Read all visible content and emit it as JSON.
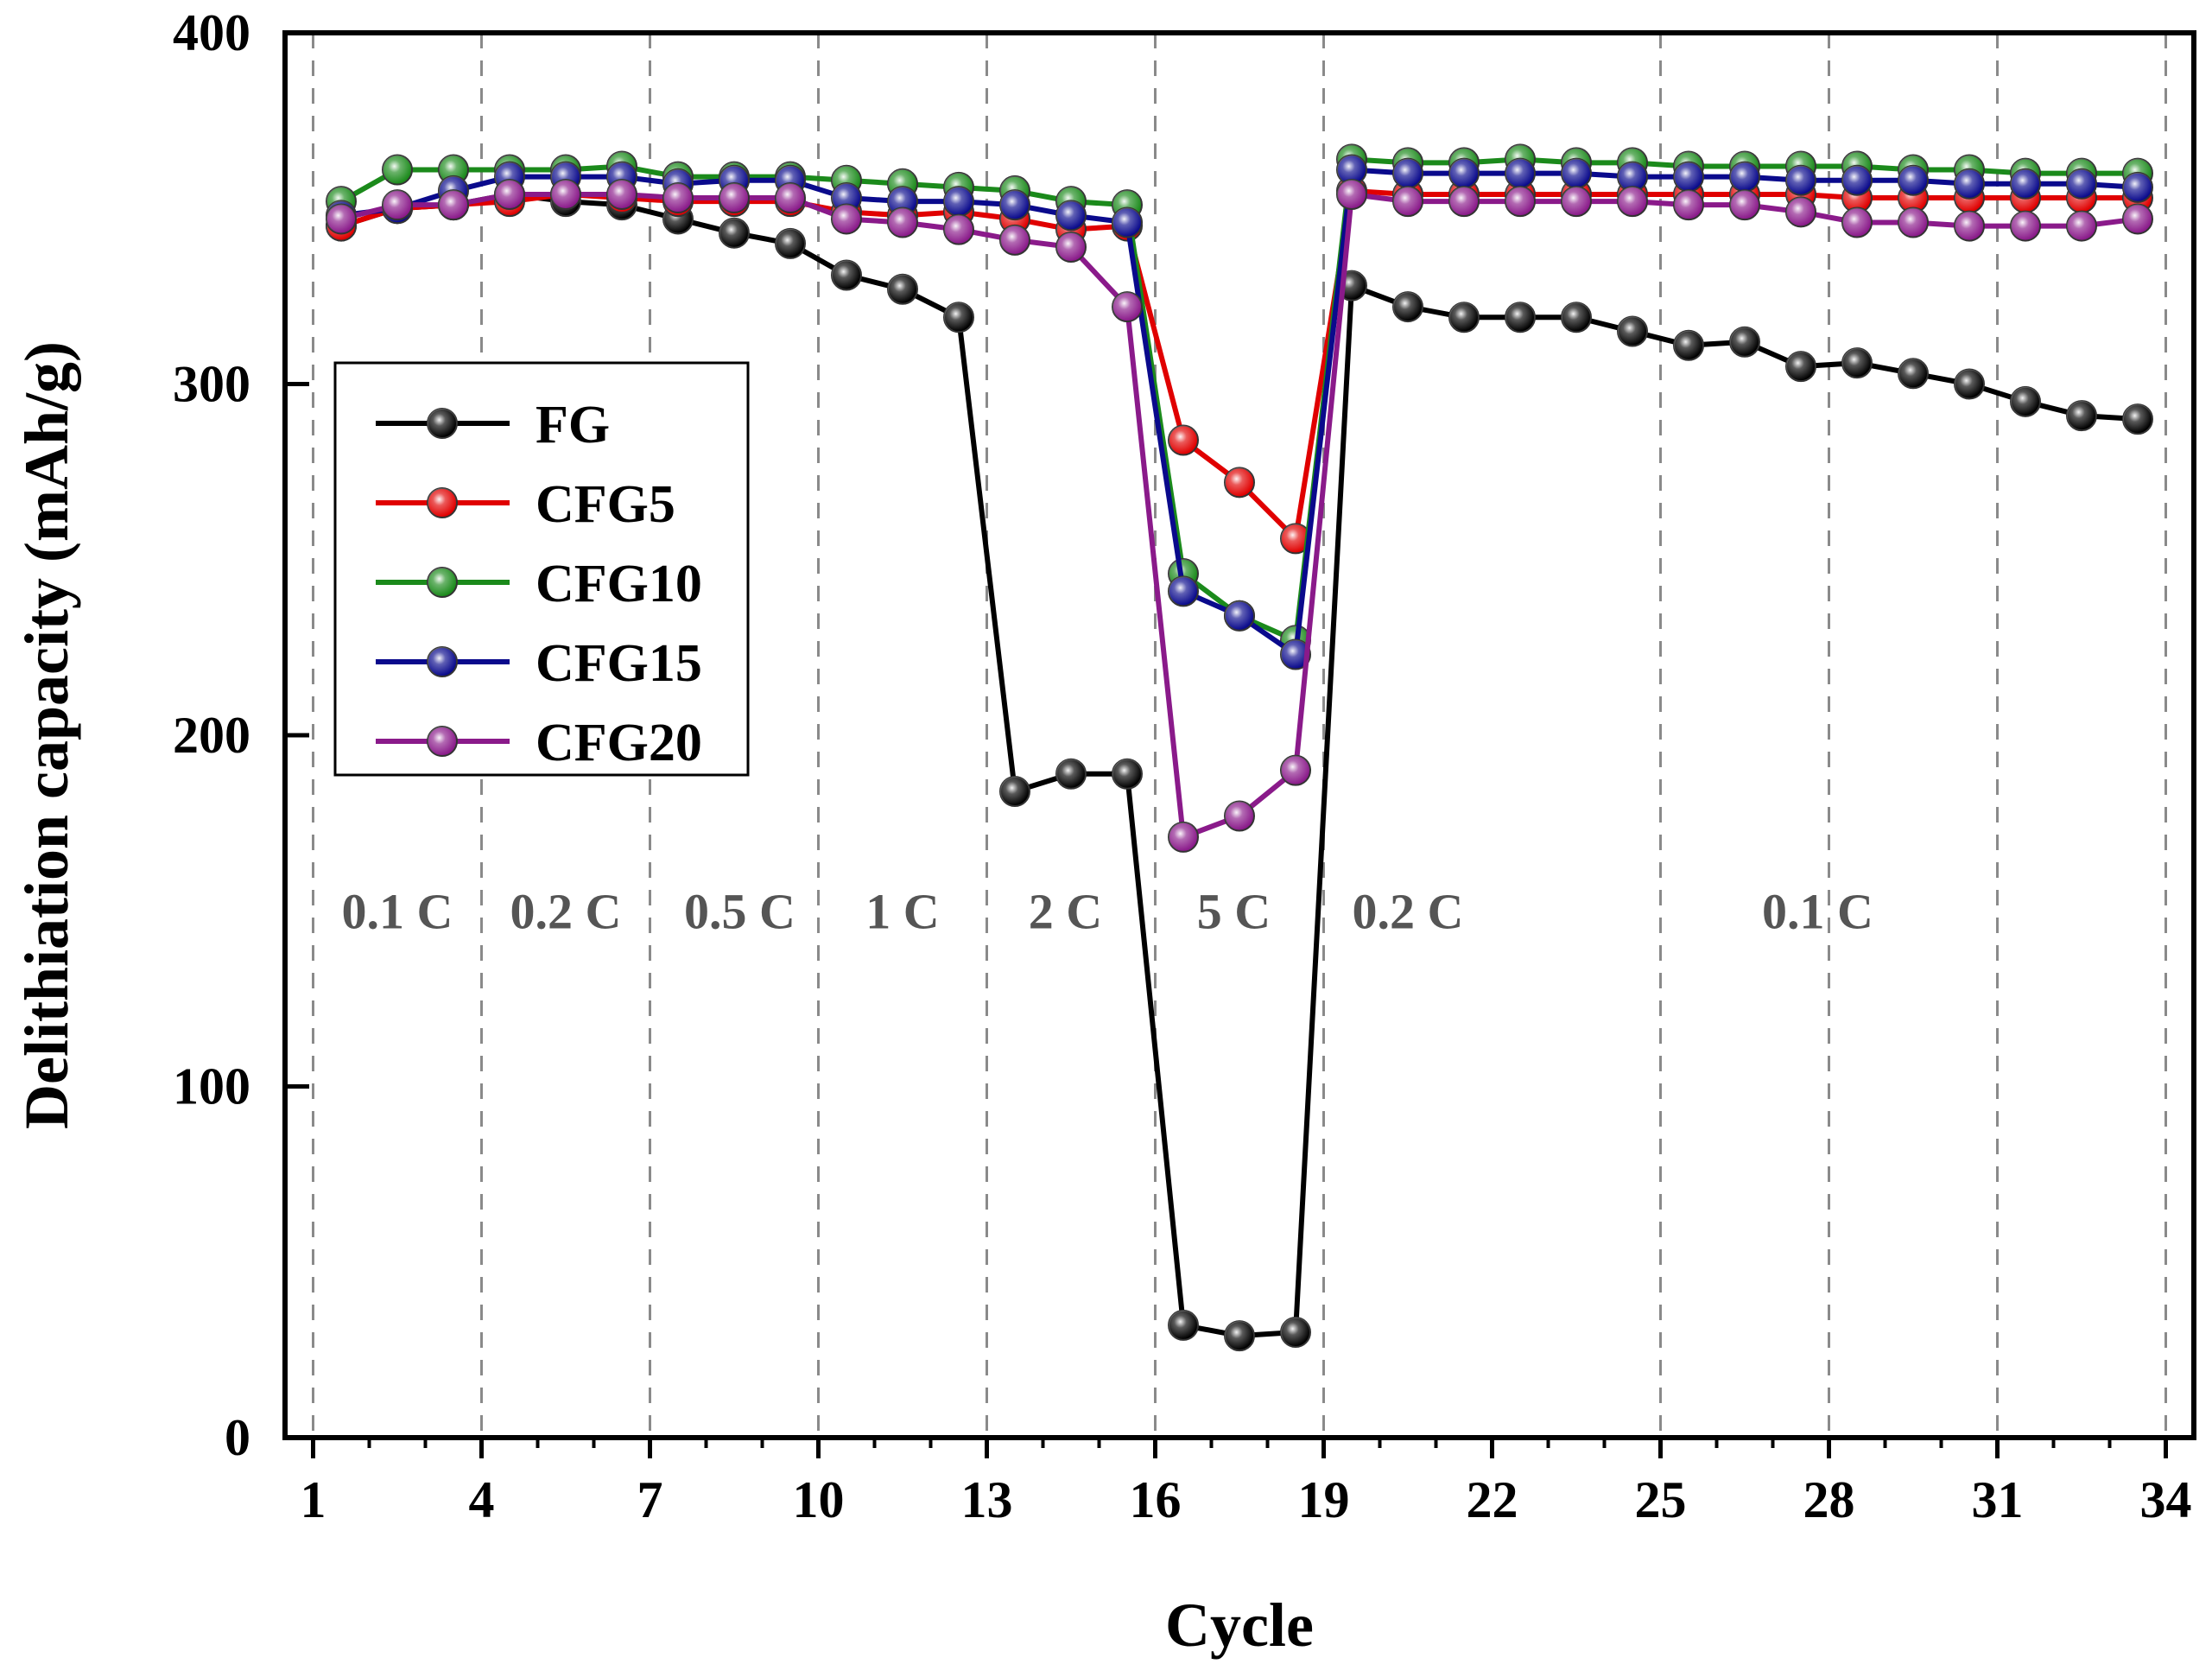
{
  "chart_data": {
    "type": "line",
    "title": "",
    "xlabel": "Cycle",
    "ylabel": "Delithiation capacity (mAh/g)",
    "xlim": [
      0.5,
      34.5
    ],
    "ylim": [
      0,
      400
    ],
    "xticks": [
      1,
      4,
      7,
      10,
      13,
      16,
      19,
      22,
      25,
      28,
      31,
      34
    ],
    "yticks": [
      0,
      100,
      200,
      300,
      400
    ],
    "grid": false,
    "section_dividers": [
      1,
      4,
      7,
      10,
      13,
      16,
      19,
      25,
      28,
      31,
      34
    ],
    "rate_labels": [
      {
        "label": "0.1 C",
        "x": 2.5
      },
      {
        "label": "0.2 C",
        "x": 5.5
      },
      {
        "label": "0.5 C",
        "x": 8.6
      },
      {
        "label": "1 C",
        "x": 11.5
      },
      {
        "label": "2 C",
        "x": 14.4
      },
      {
        "label": "5 C",
        "x": 17.4
      },
      {
        "label": "0.2 C",
        "x": 20.5
      },
      {
        "label": "0.1 C",
        "x": 27.8
      }
    ],
    "rate_label_y": 145,
    "legend_position": "left-middle",
    "x": [
      1.5,
      2.5,
      3.5,
      4.5,
      5.5,
      6.5,
      7.5,
      8.5,
      9.5,
      10.5,
      11.5,
      12.5,
      13.5,
      14.5,
      15.5,
      16.5,
      17.5,
      18.5,
      19.5,
      20.5,
      21.5,
      22.5,
      23.5,
      24.5,
      25.5,
      26.5,
      27.5,
      28.5,
      29.5,
      30.5,
      31.5,
      32.5,
      33.5
    ],
    "series": [
      {
        "name": "FG",
        "color": "#000000",
        "values": [
          345,
          350,
          351,
          354,
          352,
          351,
          347,
          343,
          340,
          331,
          327,
          319,
          184,
          189,
          189,
          32,
          29,
          30,
          328,
          322,
          319,
          319,
          319,
          315,
          311,
          312,
          305,
          306,
          303,
          300,
          295,
          291,
          290
        ]
      },
      {
        "name": "CFG5",
        "color": "#e00000",
        "values": [
          345,
          350,
          351,
          352,
          354,
          353,
          352,
          352,
          352,
          349,
          348,
          349,
          347,
          344,
          345,
          284,
          272,
          256,
          355,
          354,
          354,
          354,
          354,
          354,
          354,
          354,
          354,
          353,
          353,
          353,
          353,
          353,
          353
        ]
      },
      {
        "name": "CFG10",
        "color": "#1b8a1b",
        "values": [
          352,
          361,
          361,
          361,
          361,
          362,
          359,
          359,
          359,
          358,
          357,
          356,
          355,
          352,
          351,
          246,
          234,
          227,
          364,
          363,
          363,
          364,
          363,
          363,
          362,
          362,
          362,
          362,
          361,
          361,
          360,
          360,
          360
        ]
      },
      {
        "name": "CFG15",
        "color": "#0a0a8c",
        "values": [
          348,
          350,
          355,
          359,
          359,
          359,
          357,
          358,
          358,
          353,
          352,
          352,
          351,
          348,
          346,
          241,
          234,
          223,
          361,
          360,
          360,
          360,
          360,
          359,
          359,
          359,
          358,
          358,
          358,
          357,
          357,
          357,
          356
        ]
      },
      {
        "name": "CFG20",
        "color": "#8a1a8a",
        "values": [
          347,
          351,
          351,
          354,
          354,
          354,
          353,
          353,
          353,
          347,
          346,
          344,
          341,
          339,
          322,
          171,
          177,
          190,
          354,
          352,
          352,
          352,
          352,
          352,
          351,
          351,
          349,
          346,
          346,
          345,
          345,
          345,
          347
        ]
      }
    ]
  }
}
